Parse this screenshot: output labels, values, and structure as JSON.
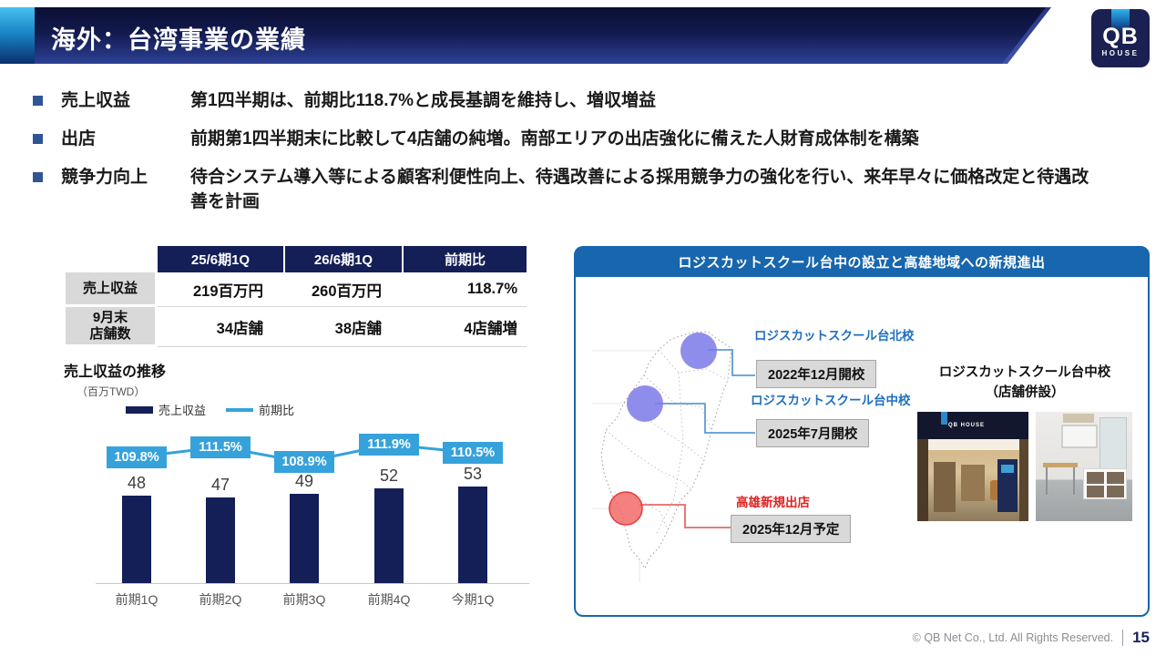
{
  "slide": {
    "title": "海外：台湾事業の業績",
    "page_number": "15",
    "copyright": "© QB Net Co., Ltd. All Rights Reserved."
  },
  "logo": {
    "top": "QB",
    "bottom": "HOUSE"
  },
  "bullets": [
    {
      "label": "売上収益",
      "text": "第1四半期は、前期比118.7%と成長基調を維持し、増収増益"
    },
    {
      "label": "出店",
      "text": "前期第1四半期末に比較して4店舗の純増。南部エリアの出店強化に備えた人財育成体制を構築"
    },
    {
      "label": "競争力向上",
      "text": "待合システム導入等による顧客利便性向上、待遇改善による採用競争力の強化を行い、来年早々に価格改定と待遇改善を計画"
    }
  ],
  "table": {
    "columns": [
      "25/6期1Q",
      "26/6期1Q",
      "前期比"
    ],
    "rows": [
      {
        "label_line1": "売上収益",
        "label_line2": "",
        "values": [
          "219百万円",
          "260百万円",
          "118.7%"
        ]
      },
      {
        "label_line1": "9月末",
        "label_line2": "店舗数",
        "values": [
          "34店舗",
          "38店舗",
          "4店舗増"
        ]
      }
    ]
  },
  "chart_data": {
    "type": "bar+line",
    "title": "売上収益の推移",
    "unit": "（百万TWD）",
    "categories": [
      "前期1Q",
      "前期2Q",
      "前期3Q",
      "前期4Q",
      "今期1Q"
    ],
    "series": [
      {
        "name": "売上収益",
        "type": "bar",
        "values": [
          48,
          47,
          49,
          52,
          53
        ],
        "color": "#141f57"
      },
      {
        "name": "前期比",
        "type": "line",
        "values": [
          109.8,
          111.5,
          108.9,
          111.9,
          110.5
        ],
        "labels": [
          "109.8%",
          "111.5%",
          "108.9%",
          "111.9%",
          "110.5%"
        ],
        "color": "#36a2db"
      }
    ],
    "ylim": [
      0,
      60
    ],
    "grid": false,
    "legend_position": "top-left"
  },
  "panel": {
    "title": "ロジスカットスクール台中の設立と高雄地域への新規進出",
    "markers": [
      {
        "id": "taipei",
        "label": "ロジスカットスクール台北校",
        "date": "2022年12月開校",
        "color": "#7b79e9"
      },
      {
        "id": "taichung",
        "label": "ロジスカットスクール台中校",
        "date": "2025年7月開校",
        "color": "#7b79e9"
      },
      {
        "id": "kaohsiung",
        "label": "高雄新規出店",
        "date": "2025年12月予定",
        "color": "#f15b5b"
      }
    ],
    "photos": {
      "caption_line1": "ロジスカットスクール台中校",
      "caption_line2": "（店舗併設）",
      "storefront_sign": "QB HOUSE"
    }
  },
  "colors": {
    "panel_blue": "#1766ae",
    "navy": "#141f57",
    "light_blue": "#36a2db",
    "purple_marker": "#7b79e9",
    "red_marker": "#f15b5b",
    "bullet_square": "#2f5597"
  }
}
